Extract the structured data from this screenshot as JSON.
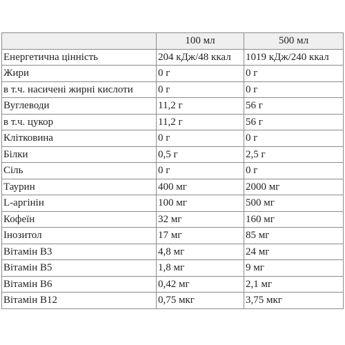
{
  "table": {
    "columns": [
      "100 мл",
      "500 мл"
    ],
    "rows": [
      [
        "Енергетична цінність",
        "204 кДж/48 ккал",
        "1019 кДж/240 ккал"
      ],
      [
        "Жири",
        "0 г",
        "0 г"
      ],
      [
        "в т.ч. насичені жирні кислоти",
        "0 г",
        "0 г"
      ],
      [
        "Вуглеводи",
        "11,2 г",
        "56 г"
      ],
      [
        "в т.ч. цукор",
        "11,2 г",
        "56 г"
      ],
      [
        "Клітковина",
        "0 г",
        "0 г"
      ],
      [
        "Білки",
        "0,5 г",
        "2,5 г"
      ],
      [
        "Сіль",
        "0 г",
        "0 г"
      ],
      [
        "Таурин",
        "400 мг",
        "2000 мг"
      ],
      [
        "L-аргінін",
        "100 мг",
        "500 мг"
      ],
      [
        "Кофеїн",
        "32 мг",
        "160 мг"
      ],
      [
        "Інозитол",
        "17 мг",
        "85 мг"
      ],
      [
        "Вітамін В3",
        "4,8 мг",
        "24 мг"
      ],
      [
        "Вітамін В5",
        "1,8 мг",
        "9 мг"
      ],
      [
        "Вітамін В6",
        "0,42 мг",
        "2,1 мг"
      ],
      [
        "Вітамін В12",
        "0,75 мкг",
        "3,75 мкг"
      ]
    ]
  }
}
